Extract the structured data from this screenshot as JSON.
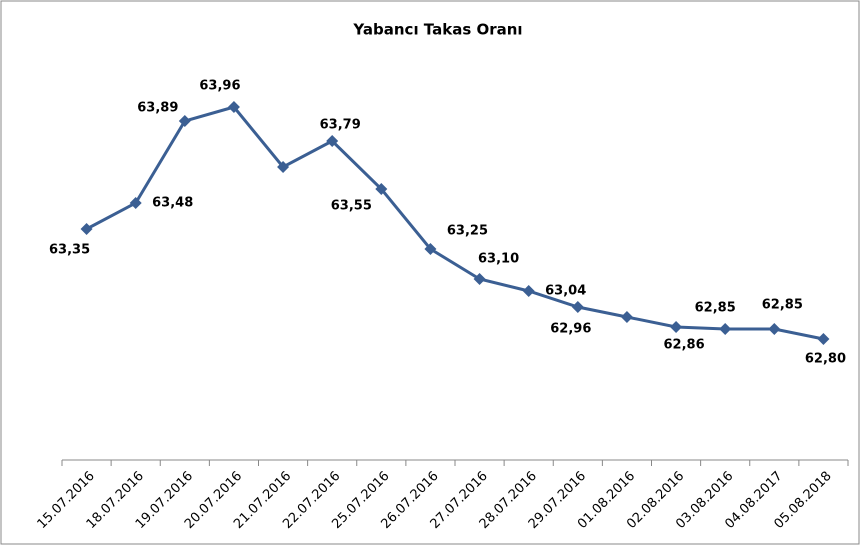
{
  "chart_data": {
    "type": "line",
    "title": "Yabancı Takas Oranı",
    "categories": [
      "15.07.2016",
      "18.07.2016",
      "19.07.2016",
      "20.07.2016",
      "21.07.2016",
      "22.07.2016",
      "25.07.2016",
      "26.07.2016",
      "27.07.2016",
      "28.07.2016",
      "29.07.2016",
      "01.08.2016",
      "02.08.2016",
      "03.08.2016",
      "04.08.2017",
      "05.08.2018"
    ],
    "series": [
      {
        "name": "Yabancı Takas Oranı",
        "color": "#3b5f93",
        "values": [
          63.35,
          63.48,
          63.89,
          63.96,
          63.66,
          63.79,
          63.55,
          63.25,
          63.1,
          63.04,
          62.96,
          62.91,
          62.86,
          62.85,
          62.85,
          62.8
        ],
        "value_labels": [
          "63,35",
          "63,48",
          "63,89",
          "63,96",
          null,
          "63,79",
          "63,55",
          "63,25",
          "63,10",
          "63,04",
          "62,96",
          null,
          "62,86",
          "62,85",
          "62,85",
          "62,80"
        ]
      }
    ],
    "ylim": [
      62.2,
      64.2
    ]
  }
}
